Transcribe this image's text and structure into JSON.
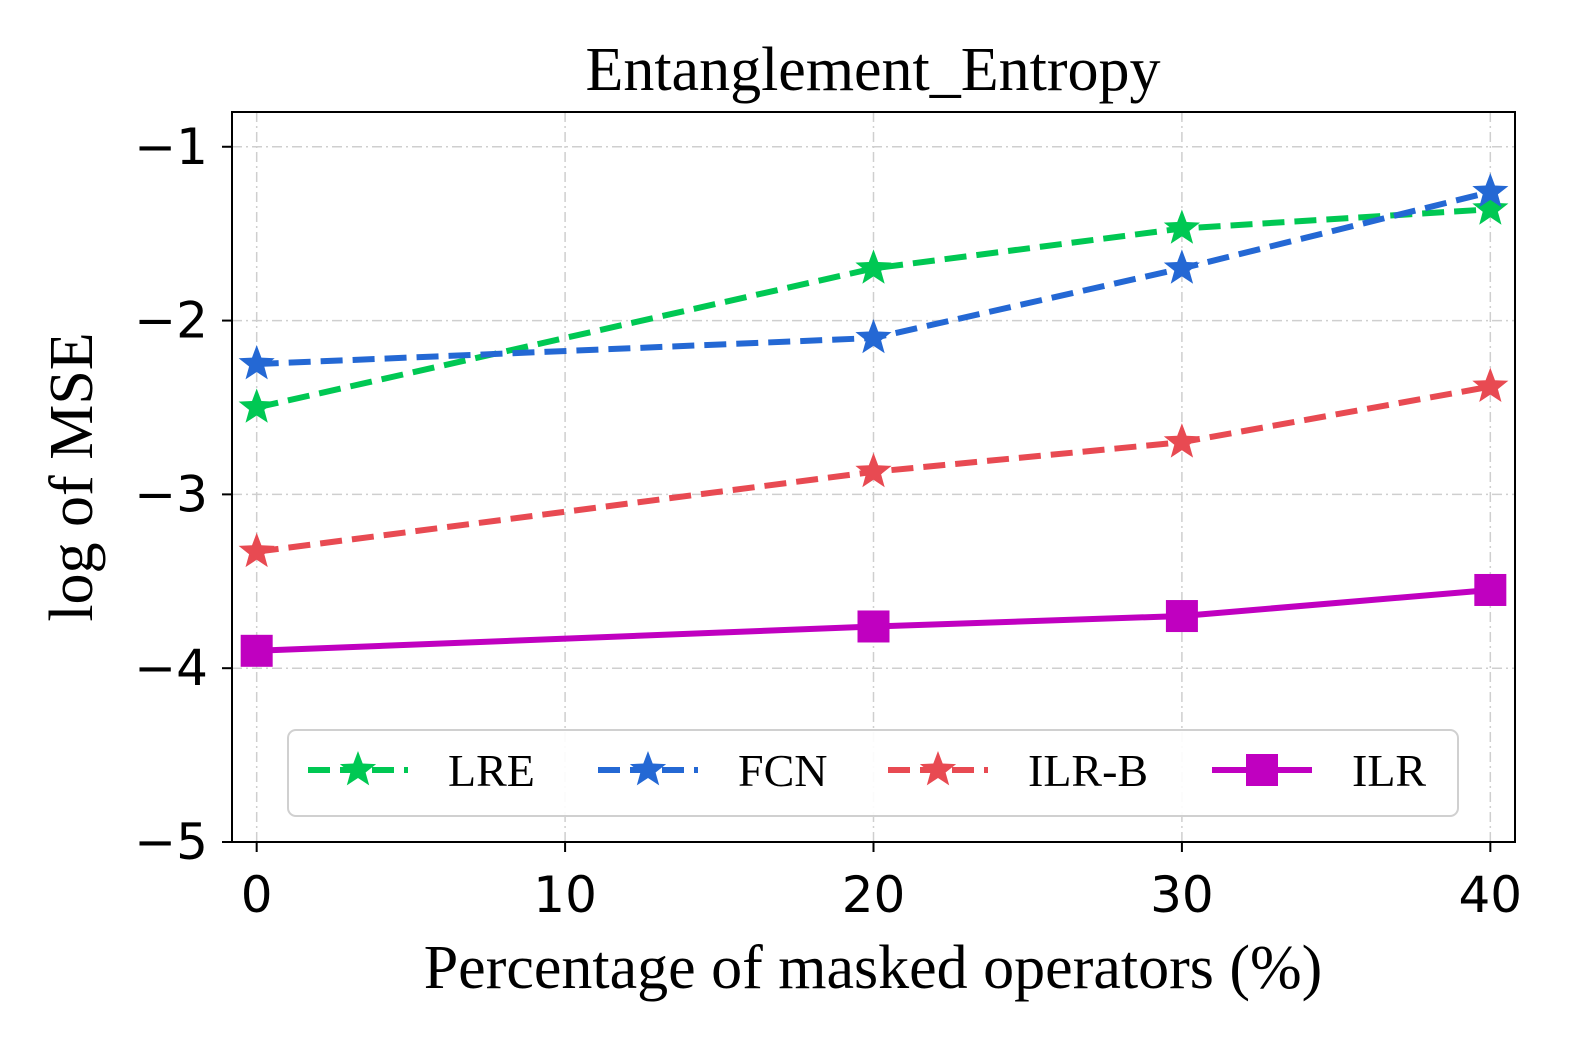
{
  "chart_data": {
    "type": "line",
    "title": "Entanglement_Entropy",
    "xlabel": "Percentage of masked operators (%)",
    "ylabel": "log of MSE",
    "x": [
      0,
      20,
      30,
      40
    ],
    "xlim": [
      -0.8,
      40.8
    ],
    "ylim": [
      -5,
      -0.8
    ],
    "xticks": [
      0,
      10,
      20,
      30,
      40
    ],
    "yticks": [
      -5,
      -4,
      -3,
      -2,
      -1
    ],
    "xtick_labels": [
      "0",
      "10",
      "20",
      "30",
      "40"
    ],
    "ytick_labels": [
      "−5",
      "−4",
      "−3",
      "−2",
      "−1"
    ],
    "grid": true,
    "legend_position": "bottom-center",
    "series": [
      {
        "name": "LRE",
        "values": [
          -2.5,
          -1.7,
          -1.47,
          -1.36
        ],
        "color": "#00c853",
        "marker": "star",
        "linestyle": "dashed"
      },
      {
        "name": "FCN",
        "values": [
          -2.25,
          -2.1,
          -1.7,
          -1.26
        ],
        "color": "#2468d4",
        "marker": "star",
        "linestyle": "dashed"
      },
      {
        "name": "ILR-B",
        "values": [
          -3.33,
          -2.87,
          -2.7,
          -2.38
        ],
        "color": "#e84a52",
        "marker": "star",
        "linestyle": "dashed"
      },
      {
        "name": "ILR",
        "values": [
          -3.9,
          -3.76,
          -3.7,
          -3.55
        ],
        "color": "#c000c0",
        "marker": "square",
        "linestyle": "solid"
      }
    ]
  }
}
